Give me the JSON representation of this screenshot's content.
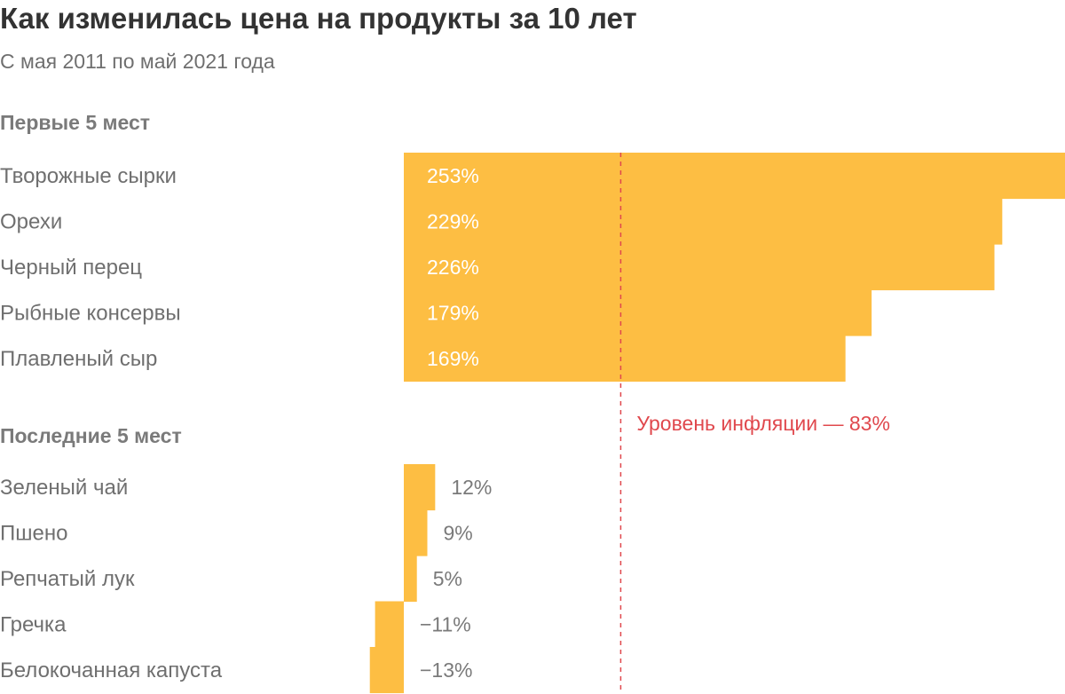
{
  "title": "Как изменилась цена на продукты за 10 лет",
  "subtitle": "С мая 2011 по май 2021 года",
  "colors": {
    "bar": "#FDBE43",
    "inflation_line": "#E0484D"
  },
  "chart_data": {
    "type": "bar",
    "orientation": "horizontal",
    "title": "Как изменилась цена на продукты за 10 лет",
    "subtitle": "С мая 2011 по май 2021 года",
    "unit": "%",
    "xlim": [
      -16,
      253
    ],
    "groups": [
      {
        "heading": "Первые 5 мест",
        "categories": [
          "Творожные сырки",
          "Орехи",
          "Черный перец",
          "Рыбные консервы",
          "Плавленый сыр"
        ],
        "values": [
          253,
          229,
          226,
          179,
          169
        ],
        "labels": [
          "253%",
          "229%",
          "226%",
          "179%",
          "169%"
        ]
      },
      {
        "heading": "Последние 5 мест",
        "categories": [
          "Зеленый чай",
          "Пшено",
          "Репчатый лук",
          "Гречка",
          "Белокочанная капуста"
        ],
        "values": [
          12,
          9,
          5,
          -11,
          -13
        ],
        "labels": [
          "12%",
          "9%",
          "5%",
          "−11%",
          "−13%"
        ]
      }
    ],
    "reference_line": {
      "value": 83,
      "label": "Уровень инфляции — 83%",
      "style": "dashed"
    }
  }
}
